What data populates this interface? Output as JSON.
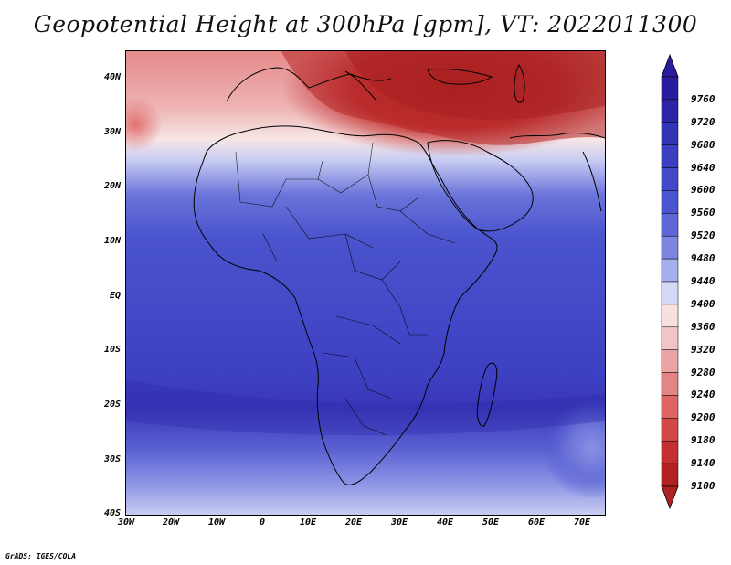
{
  "title": "Geopotential Height at 300hPa [gpm], VT: 2022011300",
  "credit": "GrADS: IGES/COLA",
  "map": {
    "y_labels": [
      "40N",
      "30N",
      "20N",
      "10N",
      "EQ",
      "10S",
      "20S",
      "30S",
      "40S"
    ],
    "x_labels": [
      "30W",
      "20W",
      "10W",
      "0",
      "10E",
      "20E",
      "30E",
      "40E",
      "50E",
      "60E",
      "70E"
    ],
    "lon_range": [
      -30,
      75
    ],
    "lat_range": [
      -40,
      44
    ]
  },
  "colorbar": {
    "levels": [
      "9760",
      "9720",
      "9680",
      "9640",
      "9600",
      "9560",
      "9520",
      "9480",
      "9440",
      "9400",
      "9360",
      "9320",
      "9280",
      "9240",
      "9200",
      "9180",
      "9140",
      "9100"
    ],
    "colors": [
      "#2a1a9e",
      "#2d25a8",
      "#3233b5",
      "#3a3fc0",
      "#4249c8",
      "#4b55cf",
      "#5d67d6",
      "#7c86e0",
      "#a7aeec",
      "#d6d9f6",
      "#f6e0e0",
      "#f2c4c4",
      "#eca3a3",
      "#e58484",
      "#de6565",
      "#d44747",
      "#c52f2f",
      "#b02222"
    ]
  }
}
